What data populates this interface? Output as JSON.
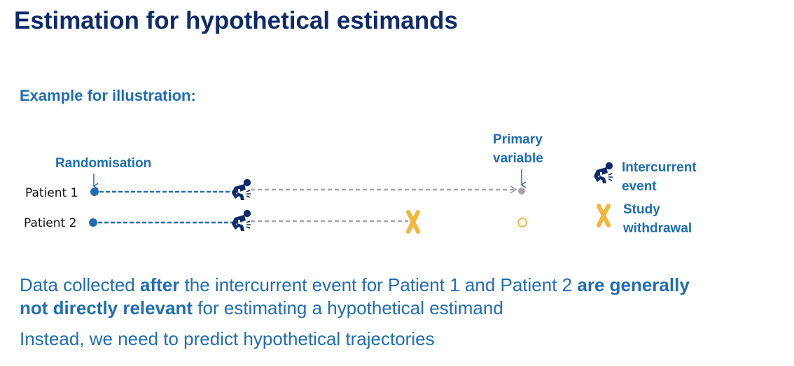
{
  "title": "Estimation for hypothetical estimands",
  "subtitle": "Example for illustration:",
  "diagram": {
    "randomisation_label": "Randomisation",
    "primary_variable_label": [
      "Primary",
      "variable"
    ],
    "patients": [
      "Patient 1",
      "Patient 2"
    ],
    "legend": {
      "intercurrent_event": [
        "Intercurrent",
        "event"
      ],
      "study_withdrawal": [
        "Study",
        "withdrawal"
      ]
    },
    "icons": [
      "person-in-pain-icon",
      "withdrawal-cross-icon",
      "open-circle-icon"
    ],
    "colors": {
      "blue": "#1f6db5",
      "dark_navy": "#0f2a6b",
      "gray": "#a6a6a6",
      "yellow": "#f2b73a"
    }
  },
  "text": {
    "line1": {
      "a": "Data collected ",
      "b": "after",
      "c": " the intercurrent event for Patient 1 and Patient 2 ",
      "d": "are generally"
    },
    "line2": {
      "a": "not directly relevant",
      "b": " for estimating a hypothetical estimand"
    },
    "line3": "Instead, we need to predict hypothetical trajectories"
  }
}
